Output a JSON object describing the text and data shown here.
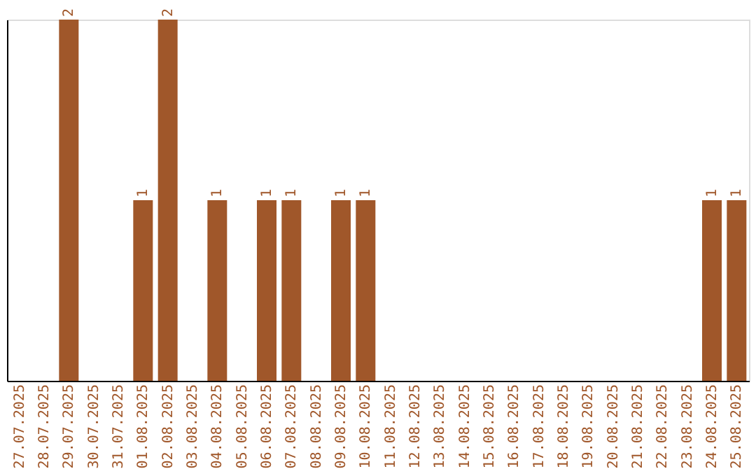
{
  "chart_data": {
    "type": "bar",
    "categories": [
      "27.07.2025",
      "28.07.2025",
      "29.07.2025",
      "30.07.2025",
      "31.07.2025",
      "01.08.2025",
      "02.08.2025",
      "03.08.2025",
      "04.08.2025",
      "05.08.2025",
      "06.08.2025",
      "07.08.2025",
      "08.08.2025",
      "09.08.2025",
      "10.08.2025",
      "11.08.2025",
      "12.08.2025",
      "13.08.2025",
      "14.08.2025",
      "15.08.2025",
      "16.08.2025",
      "17.08.2025",
      "18.08.2025",
      "19.08.2025",
      "20.08.2025",
      "21.08.2025",
      "22.08.2025",
      "23.08.2025",
      "24.08.2025",
      "25.08.2025"
    ],
    "values": [
      0,
      0,
      2,
      0,
      0,
      1,
      2,
      0,
      1,
      0,
      1,
      1,
      0,
      1,
      1,
      0,
      0,
      0,
      0,
      0,
      0,
      0,
      0,
      0,
      0,
      0,
      0,
      0,
      1,
      1
    ],
    "value_labels": [
      null,
      null,
      "2",
      null,
      null,
      "1",
      "2",
      null,
      "1",
      null,
      "1",
      "1",
      null,
      "1",
      "1",
      null,
      null,
      null,
      null,
      null,
      null,
      null,
      null,
      null,
      null,
      null,
      null,
      null,
      "1",
      "1"
    ],
    "color": "#a0572a",
    "tick_labels": "x",
    "grid": false
  }
}
